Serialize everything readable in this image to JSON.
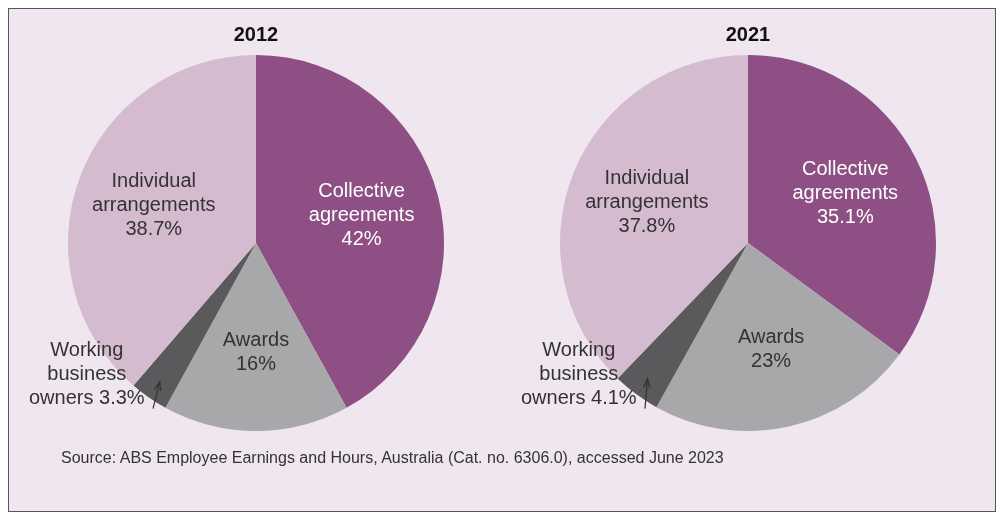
{
  "chart_data": [
    {
      "type": "pie",
      "title": "2012",
      "categories": [
        "Collective agreements",
        "Awards",
        "Working business owners",
        "Individual arrangements"
      ],
      "values": [
        42,
        16,
        3.3,
        38.7
      ],
      "value_labels": [
        "42%",
        "16%",
        "3.3%",
        "38.7%"
      ],
      "colors": [
        "#8e4f84",
        "#a8a8aa",
        "#5a5a5c",
        "#d5bbd0"
      ],
      "legend": false,
      "annotations": [
        "Source: ABS Employee Earnings and Hours, Australia (Cat. no. 6306.0), accessed June 2023"
      ]
    },
    {
      "type": "pie",
      "title": "2021",
      "categories": [
        "Collective agreements",
        "Awards",
        "Working business owners",
        "Individual arrangements"
      ],
      "values": [
        35.1,
        23,
        4.1,
        37.8
      ],
      "value_labels": [
        "35.1%",
        "23%",
        "4.1%",
        "37.8%"
      ],
      "colors": [
        "#8e4f84",
        "#a8a8aa",
        "#5a5a5c",
        "#d5bbd0"
      ],
      "legend": false
    }
  ]
}
